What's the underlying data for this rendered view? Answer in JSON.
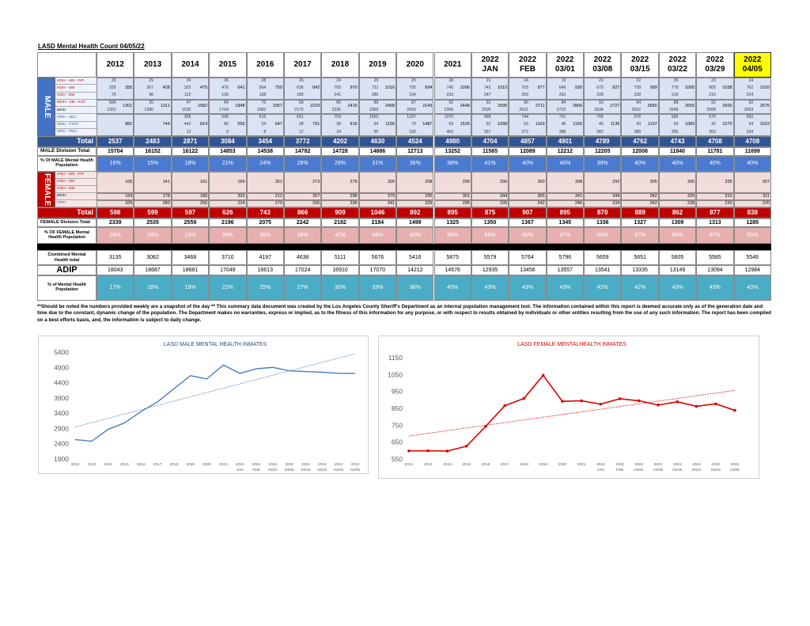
{
  "title": "LASD Mental Health Count 04/05/22",
  "columns": [
    [
      "2012"
    ],
    [
      "2013"
    ],
    [
      "2014"
    ],
    [
      "2015"
    ],
    [
      "2016"
    ],
    [
      "2017"
    ],
    [
      "2018"
    ],
    [
      "2019"
    ],
    [
      "2020"
    ],
    [
      "2021"
    ],
    [
      "2022",
      "JAN"
    ],
    [
      "2022",
      "FEB"
    ],
    [
      "2022",
      "03/01"
    ],
    [
      "2022",
      "03/08"
    ],
    [
      "2022",
      "03/15"
    ],
    [
      "2022",
      "03/22"
    ],
    [
      "2022",
      "03/29"
    ],
    [
      "2022",
      "04/05"
    ]
  ],
  "male": {
    "label": "MALE",
    "groups": [
      {
        "labels": [
          "HOH - SM - FIP",
          "HOH - SM",
          "HOH - DM"
        ],
        "cells": [
          [
            "25",
            "255",
            "75"
          ],
          [
            "25",
            "307",
            "96"
          ],
          [
            "24",
            "329",
            "122"
          ],
          [
            "26",
            "476",
            "139"
          ],
          [
            "28",
            "564",
            "158"
          ],
          [
            "26",
            "636",
            "180"
          ],
          [
            "24",
            "705",
            "241"
          ],
          [
            "25",
            "711",
            "280"
          ],
          [
            "25",
            "705",
            "164"
          ],
          [
            "28",
            "745",
            "233"
          ],
          [
            "21",
            "742",
            "247"
          ],
          [
            "24",
            "703",
            "250"
          ],
          [
            "19",
            "649",
            "262"
          ],
          [
            "20",
            "679",
            "228"
          ],
          [
            "22",
            "739",
            "238"
          ],
          [
            "25",
            "770",
            "210"
          ],
          [
            "23",
            "805",
            "210"
          ],
          [
            "24",
            "762",
            "224"
          ]
        ],
        "totals": [
          "355",
          "428",
          "475",
          "641",
          "750",
          "842",
          "970",
          "1016",
          "894",
          "1006",
          "1010",
          "977",
          "930",
          "927",
          "999",
          "1005",
          "1038",
          "1010"
        ]
      },
      {
        "labels": [
          "MOH - SM - K10",
          "MOH"
        ],
        "cells": [
          [
            "N/A",
            "1301"
          ],
          [
            "25",
            "1286"
          ],
          [
            "47",
            "1535"
          ],
          [
            "84",
            "1764"
          ],
          [
            "75",
            "1982"
          ],
          [
            "59",
            "2170"
          ],
          [
            "80",
            "2336"
          ],
          [
            "89",
            "2369"
          ],
          [
            "87",
            "2056"
          ],
          [
            "92",
            "2356"
          ],
          [
            "91",
            "2505"
          ],
          [
            "90",
            "2621"
          ],
          [
            "84",
            "2722"
          ],
          [
            "93",
            "2634"
          ],
          [
            "94",
            "2562"
          ],
          [
            "88",
            "2566"
          ],
          [
            "92",
            "2508"
          ],
          [
            "92",
            "2583"
          ]
        ],
        "totals": [
          "1301",
          "1311",
          "1582",
          "1848",
          "2057",
          "2229",
          "2416",
          "2458",
          "2143",
          "2448",
          "2596",
          "2711",
          "2806",
          "2727",
          "2656",
          "2655",
          "2600",
          "2675"
        ]
      },
      {
        "labels": [
          "GPm - MCI",
          "GPm - TTCF",
          "GPm - PDC"
        ],
        "cells": [
          [
            null,
            null,
            null
          ],
          [
            null,
            null,
            null
          ],
          [
            "358",
            "443",
            "13"
          ],
          [
            "506",
            "80",
            "9"
          ],
          [
            "615",
            "24",
            "8"
          ],
          [
            "661",
            "28",
            "12"
          ],
          [
            "753",
            "39",
            "24"
          ],
          [
            "1002",
            "64",
            "90"
          ],
          [
            "1237",
            "70",
            "180"
          ],
          [
            "1070",
            "53",
            "403"
          ],
          [
            "689",
            "52",
            "357"
          ],
          [
            "744",
            "53",
            "372"
          ],
          [
            "731",
            "46",
            "388"
          ],
          [
            "708",
            "45",
            "382"
          ],
          [
            "676",
            "43",
            "388"
          ],
          [
            "685",
            "43",
            "355"
          ],
          [
            "675",
            "42",
            "353"
          ],
          [
            "655",
            "34",
            "334"
          ]
        ],
        "totals": [
          "881",
          "744",
          "814",
          "595",
          "647",
          "701",
          "816",
          "1156",
          "1487",
          "1526",
          "1098",
          "1169",
          "1165",
          "1135",
          "1107",
          "1083",
          "1070",
          "1023"
        ]
      }
    ],
    "total": {
      "label": "Total",
      "values": [
        "2537",
        "2483",
        "2871",
        "3084",
        "3454",
        "3772",
        "4202",
        "4630",
        "4524",
        "4980",
        "4704",
        "4857",
        "4901",
        "4789",
        "4762",
        "4743",
        "4708",
        "4708"
      ]
    },
    "division": {
      "label": "MALE Division Total",
      "values": [
        "15704",
        "16152",
        "16122",
        "14853",
        "14538",
        "14782",
        "14728",
        "14886",
        "12713",
        "13252",
        "11585",
        "12089",
        "12212",
        "12205",
        "12008",
        "11840",
        "11781",
        "11699"
      ]
    },
    "percent": {
      "label": "% Of MALE Mental Health Population",
      "values": [
        "16%",
        "15%",
        "18%",
        "21%",
        "24%",
        "26%",
        "29%",
        "31%",
        "36%",
        "38%",
        "41%",
        "40%",
        "40%",
        "39%",
        "40%",
        "40%",
        "40%",
        "40%"
      ]
    }
  },
  "female": {
    "label": "FEMALE",
    "groups": [
      {
        "labels": [
          "HOH - SM - FIP",
          "HOH - SM",
          "HOH - DM"
        ],
        "totals": [
          "105",
          "141",
          "161",
          "199",
          "261",
          "273",
          "275",
          "326",
          "258",
          "299",
          "296",
          "300",
          "308",
          "292",
          "305",
          "305",
          "325",
          "307"
        ]
      },
      {
        "labels": [
          "MOH"
        ],
        "totals": [
          "164",
          "178",
          "180",
          "203",
          "212",
          "257",
          "298",
          "379",
          "295",
          "301",
          "344",
          "365",
          "341",
          "344",
          "342",
          "329",
          "319",
          "311"
        ]
      },
      {
        "labels": [
          "GPm"
        ],
        "totals": [
          "329",
          "280",
          "256",
          "224",
          "270",
          "336",
          "336",
          "341",
          "339",
          "295",
          "235",
          "242",
          "246",
          "234",
          "242",
          "228",
          "233",
          "220"
        ]
      }
    ],
    "total": {
      "label": "Total",
      "values": [
        "598",
        "599",
        "597",
        "626",
        "743",
        "866",
        "909",
        "1046",
        "892",
        "895",
        "875",
        "907",
        "895",
        "870",
        "889",
        "862",
        "877",
        "838"
      ]
    },
    "division": {
      "label": "FEMALE Division Total",
      "values": [
        "2339",
        "2535",
        "2559",
        "2196",
        "2075",
        "2242",
        "2182",
        "2184",
        "1499",
        "1325",
        "1350",
        "1367",
        "1345",
        "1336",
        "1327",
        "1309",
        "1313",
        "1285"
      ]
    },
    "percent": {
      "label": "% OF FEMALE Mental Health Population",
      "values": [
        "26%",
        "24%",
        "23%",
        "29%",
        "36%",
        "39%",
        "42%",
        "48%",
        "60%",
        "68%",
        "65%",
        "66%",
        "67%",
        "65%",
        "67%",
        "66%",
        "67%",
        "65%"
      ]
    }
  },
  "combined": {
    "label": "Combined Mental Health total",
    "values": [
      "3135",
      "3082",
      "3468",
      "3710",
      "4197",
      "4638",
      "5111",
      "5676",
      "5416",
      "5875",
      "5579",
      "5764",
      "5796",
      "5659",
      "5651",
      "5605",
      "5585",
      "5546"
    ]
  },
  "adip": {
    "label": "ADIP",
    "values": [
      "18043",
      "18687",
      "18681",
      "17049",
      "16613",
      "17024",
      "16910",
      "17070",
      "14212",
      "14576",
      "12935",
      "13456",
      "13557",
      "13541",
      "13335",
      "13149",
      "13094",
      "12984"
    ]
  },
  "mh_percent": {
    "label": "% of Mental Health Population",
    "values": [
      "17%",
      "16%",
      "19%",
      "22%",
      "25%",
      "27%",
      "30%",
      "33%",
      "38%",
      "40%",
      "43%",
      "43%",
      "43%",
      "42%",
      "42%",
      "43%",
      "43%",
      "43%"
    ]
  },
  "note": "**Should be noted the numbers provided weekly are a snapshot of the day ** This summary data document was created by the Los Angeles County Sheriff's Department as an internal population management tool.  The information contained within this report is deemed accurate only as of the generation date and time due to the constant, dynamic change of the population.  The Department makes no warranties, express or implied, as to the fitness of this information for any purpose, or with respect to results obtained by individuals or other entities resulting from the use of any such information.  The report has been compiled on a best efforts basis, and, the information is subject to daily change.",
  "charts": [
    {
      "type": "line",
      "title": "LASD MALE MENTAL HEALTH INMATES",
      "color": "#4a7ebb",
      "title_color": "#1f4e79",
      "markers": false,
      "trendline": true,
      "categories": [
        [
          "2012"
        ],
        [
          "2013"
        ],
        [
          "2014"
        ],
        [
          "2015"
        ],
        [
          "2016"
        ],
        [
          "2017"
        ],
        [
          "2018"
        ],
        [
          "2019"
        ],
        [
          "2020"
        ],
        [
          "2021"
        ],
        [
          "2022",
          "JAN"
        ],
        [
          "2022",
          "FEB"
        ],
        [
          "2022",
          "03/01"
        ],
        [
          "2022",
          "03/08"
        ],
        [
          "2022",
          "03/15"
        ],
        [
          "2022",
          "03/22"
        ],
        [
          "2022",
          "03/29"
        ],
        [
          "2022",
          "04/05"
        ]
      ],
      "values": [
        2537,
        2483,
        2871,
        3084,
        3454,
        3772,
        4202,
        4630,
        4524,
        4980,
        4704,
        4857,
        4901,
        4789,
        4762,
        4743,
        4708,
        4708
      ],
      "ylim": [
        1900,
        5400
      ],
      "yticks": [
        1900,
        2400,
        2900,
        3400,
        3900,
        4400,
        4900,
        5400
      ]
    },
    {
      "type": "line",
      "title": "LASD FEMALE MENTALHEALTH INMATES",
      "color": "#e00000",
      "title_color": "#e00000",
      "markers": true,
      "trendline": true,
      "categories": [
        [
          "2012"
        ],
        [
          "2013"
        ],
        [
          "2014"
        ],
        [
          "2015"
        ],
        [
          "2016"
        ],
        [
          "2017"
        ],
        [
          "2018"
        ],
        [
          "2019"
        ],
        [
          "2020"
        ],
        [
          "2021"
        ],
        [
          "2022",
          "JAN"
        ],
        [
          "2022",
          "FEB"
        ],
        [
          "2022",
          "03/01"
        ],
        [
          "2022",
          "03/08"
        ],
        [
          "2022",
          "03/15"
        ],
        [
          "2022",
          "03/22"
        ],
        [
          "2022",
          "03/29"
        ],
        [
          "2022",
          "04/05"
        ]
      ],
      "values": [
        598,
        599,
        597,
        626,
        743,
        866,
        909,
        1046,
        892,
        895,
        875,
        907,
        895,
        870,
        889,
        862,
        877,
        838
      ],
      "ylim": [
        550,
        1150
      ],
      "yticks": [
        550,
        650,
        750,
        850,
        950,
        1050,
        1150
      ]
    }
  ]
}
